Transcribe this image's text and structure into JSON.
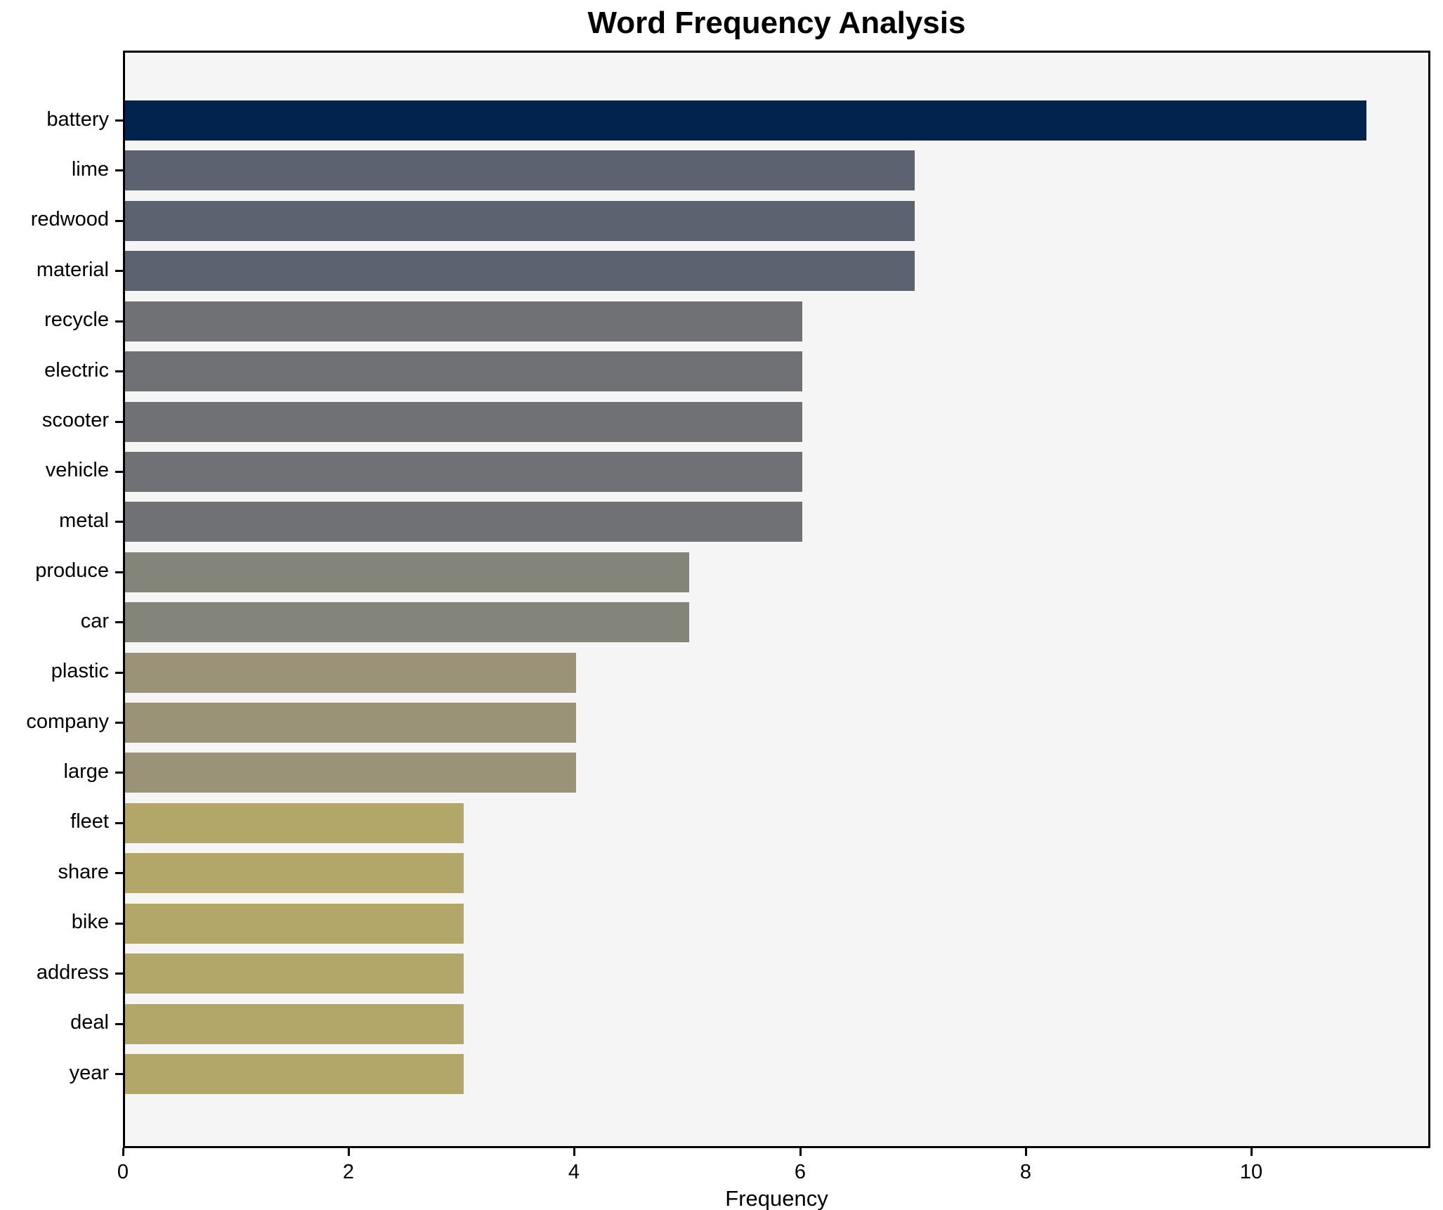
{
  "chart_data": {
    "type": "bar",
    "orientation": "horizontal",
    "title": "Word Frequency Analysis",
    "xlabel": "Frequency",
    "ylabel": "",
    "categories": [
      "battery",
      "lime",
      "redwood",
      "material",
      "recycle",
      "electric",
      "scooter",
      "vehicle",
      "metal",
      "produce",
      "car",
      "plastic",
      "company",
      "large",
      "fleet",
      "share",
      "bike",
      "address",
      "deal",
      "year"
    ],
    "values": [
      11,
      7,
      7,
      7,
      6,
      6,
      6,
      6,
      6,
      5,
      5,
      4,
      4,
      4,
      3,
      3,
      3,
      3,
      3,
      3
    ],
    "bar_colors": [
      "#02234e",
      "#5d6270",
      "#5d6270",
      "#5d6270",
      "#707174",
      "#707174",
      "#707174",
      "#707174",
      "#707174",
      "#84857a",
      "#84857a",
      "#9a9378",
      "#9a9378",
      "#9a9378",
      "#b2a768",
      "#b2a768",
      "#b2a768",
      "#b2a768",
      "#b2a768",
      "#b2a768"
    ],
    "xlim": [
      0,
      11.55
    ],
    "x_ticks": [
      0,
      2,
      4,
      6,
      8,
      10
    ],
    "grid": false,
    "legend": null,
    "plot_bg": "#f5f5f6",
    "figure_bg": "#ffffff"
  }
}
